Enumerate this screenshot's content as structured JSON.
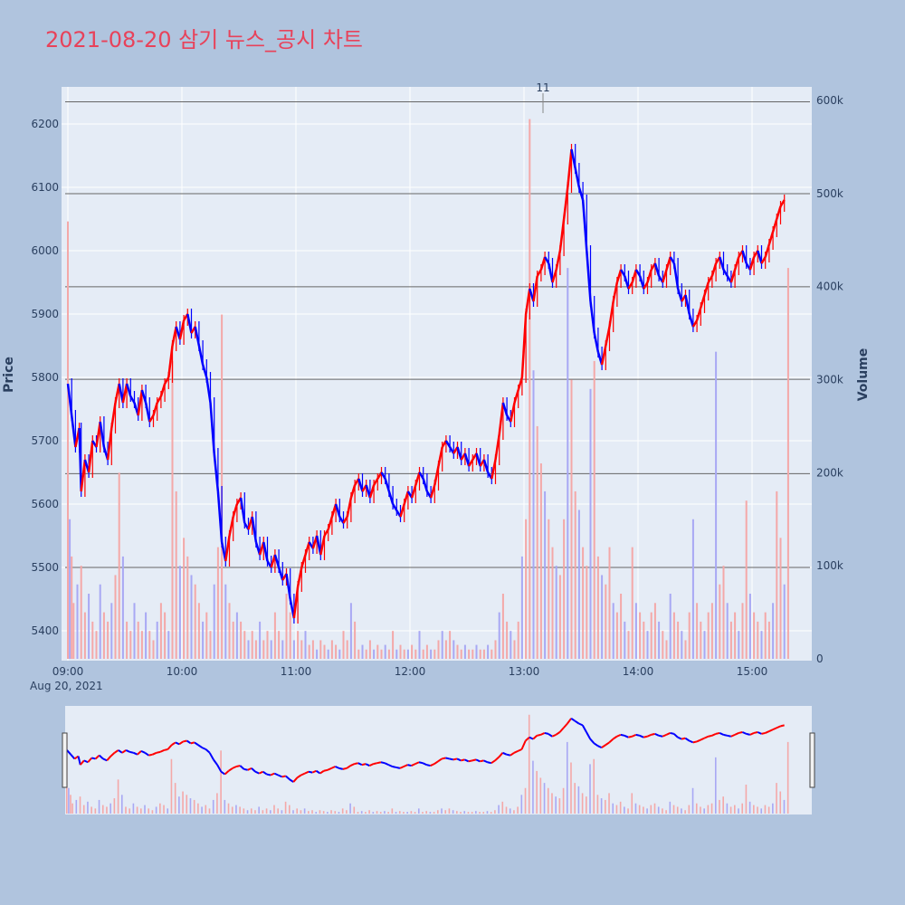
{
  "title": "2021-08-20 삼기 뉴스_공시 차트",
  "colors": {
    "up": "#ff0000",
    "down": "#0000ff",
    "up_volume": "#f4a8a8",
    "down_volume": "#a8a8f4",
    "plot_bg": "#e5ecf6",
    "page_bg": "#b0c4de",
    "title": "#e8425a",
    "hline": "#666666"
  },
  "chart_data": {
    "type": "candlestick",
    "title": "2021-08-20 삼기 뉴스_공시 차트",
    "ylabel": "Price",
    "y2label": "Volume",
    "ylim": [
      5355,
      6250
    ],
    "y2lim": [
      0,
      610000
    ],
    "price_ticks": [
      "5400",
      "5500",
      "5600",
      "5700",
      "5800",
      "5900",
      "6000",
      "6100",
      "6200"
    ],
    "volume_ticks": [
      "0",
      "100k",
      "200k",
      "300k",
      "400k",
      "500k",
      "600k"
    ],
    "time_ticks": [
      "09:00",
      "10:00",
      "11:00",
      "12:00",
      "13:00",
      "14:00",
      "15:00"
    ],
    "date_label": "Aug 20, 2021",
    "annotation": {
      "text": "11",
      "time": "13:10"
    },
    "horizontal_lines": [
      6235,
      6090,
      5943,
      5797,
      5648,
      5500
    ],
    "price_path": [
      [
        "09:00",
        5790
      ],
      [
        "09:02",
        5740
      ],
      [
        "09:04",
        5690
      ],
      [
        "09:06",
        5720
      ],
      [
        "09:07",
        5620
      ],
      [
        "09:09",
        5670
      ],
      [
        "09:11",
        5650
      ],
      [
        "09:13",
        5700
      ],
      [
        "09:15",
        5690
      ],
      [
        "09:17",
        5730
      ],
      [
        "09:19",
        5690
      ],
      [
        "09:21",
        5670
      ],
      [
        "09:23",
        5720
      ],
      [
        "09:25",
        5760
      ],
      [
        "09:27",
        5790
      ],
      [
        "09:29",
        5760
      ],
      [
        "09:31",
        5790
      ],
      [
        "09:33",
        5770
      ],
      [
        "09:35",
        5760
      ],
      [
        "09:37",
        5740
      ],
      [
        "09:39",
        5780
      ],
      [
        "09:41",
        5760
      ],
      [
        "09:43",
        5730
      ],
      [
        "09:45",
        5740
      ],
      [
        "09:47",
        5760
      ],
      [
        "09:49",
        5770
      ],
      [
        "09:51",
        5790
      ],
      [
        "09:53",
        5800
      ],
      [
        "09:55",
        5850
      ],
      [
        "09:57",
        5880
      ],
      [
        "09:59",
        5860
      ],
      [
        "10:01",
        5890
      ],
      [
        "10:03",
        5900
      ],
      [
        "10:05",
        5870
      ],
      [
        "10:07",
        5880
      ],
      [
        "10:09",
        5850
      ],
      [
        "10:11",
        5820
      ],
      [
        "10:13",
        5800
      ],
      [
        "10:15",
        5760
      ],
      [
        "10:17",
        5680
      ],
      [
        "10:19",
        5620
      ],
      [
        "10:21",
        5540
      ],
      [
        "10:23",
        5510
      ],
      [
        "10:25",
        5550
      ],
      [
        "10:27",
        5580
      ],
      [
        "10:29",
        5600
      ],
      [
        "10:31",
        5610
      ],
      [
        "10:33",
        5570
      ],
      [
        "10:35",
        5560
      ],
      [
        "10:37",
        5580
      ],
      [
        "10:39",
        5540
      ],
      [
        "10:41",
        5520
      ],
      [
        "10:43",
        5540
      ],
      [
        "10:45",
        5510
      ],
      [
        "10:47",
        5500
      ],
      [
        "10:49",
        5520
      ],
      [
        "10:51",
        5500
      ],
      [
        "10:53",
        5480
      ],
      [
        "10:55",
        5490
      ],
      [
        "10:57",
        5450
      ],
      [
        "10:59",
        5420
      ],
      [
        "11:01",
        5470
      ],
      [
        "11:03",
        5500
      ],
      [
        "11:05",
        5520
      ],
      [
        "11:07",
        5540
      ],
      [
        "11:09",
        5530
      ],
      [
        "11:11",
        5550
      ],
      [
        "11:13",
        5520
      ],
      [
        "11:15",
        5550
      ],
      [
        "11:17",
        5560
      ],
      [
        "11:19",
        5580
      ],
      [
        "11:21",
        5600
      ],
      [
        "11:23",
        5580
      ],
      [
        "11:25",
        5570
      ],
      [
        "11:27",
        5580
      ],
      [
        "11:29",
        5610
      ],
      [
        "11:31",
        5630
      ],
      [
        "11:33",
        5640
      ],
      [
        "11:35",
        5620
      ],
      [
        "11:37",
        5630
      ],
      [
        "11:39",
        5610
      ],
      [
        "11:41",
        5630
      ],
      [
        "11:43",
        5640
      ],
      [
        "11:45",
        5650
      ],
      [
        "11:47",
        5640
      ],
      [
        "11:49",
        5620
      ],
      [
        "11:51",
        5600
      ],
      [
        "11:53",
        5590
      ],
      [
        "11:55",
        5580
      ],
      [
        "11:57",
        5600
      ],
      [
        "11:59",
        5620
      ],
      [
        "12:01",
        5610
      ],
      [
        "12:03",
        5630
      ],
      [
        "12:05",
        5650
      ],
      [
        "12:07",
        5640
      ],
      [
        "12:09",
        5620
      ],
      [
        "12:11",
        5610
      ],
      [
        "12:13",
        5630
      ],
      [
        "12:15",
        5660
      ],
      [
        "12:17",
        5690
      ],
      [
        "12:19",
        5700
      ],
      [
        "12:21",
        5690
      ],
      [
        "12:23",
        5680
      ],
      [
        "12:25",
        5690
      ],
      [
        "12:27",
        5670
      ],
      [
        "12:29",
        5680
      ],
      [
        "12:31",
        5660
      ],
      [
        "12:33",
        5670
      ],
      [
        "12:35",
        5680
      ],
      [
        "12:37",
        5660
      ],
      [
        "12:39",
        5670
      ],
      [
        "12:41",
        5650
      ],
      [
        "12:43",
        5640
      ],
      [
        "12:45",
        5670
      ],
      [
        "12:47",
        5710
      ],
      [
        "12:49",
        5760
      ],
      [
        "12:51",
        5740
      ],
      [
        "12:53",
        5730
      ],
      [
        "12:55",
        5760
      ],
      [
        "12:57",
        5780
      ],
      [
        "12:59",
        5800
      ],
      [
        "13:01",
        5900
      ],
      [
        "13:03",
        5940
      ],
      [
        "13:05",
        5920
      ],
      [
        "13:07",
        5960
      ],
      [
        "13:09",
        5970
      ],
      [
        "13:11",
        5990
      ],
      [
        "13:13",
        5980
      ],
      [
        "13:15",
        5950
      ],
      [
        "13:17",
        5970
      ],
      [
        "13:19",
        6000
      ],
      [
        "13:21",
        6050
      ],
      [
        "13:23",
        6100
      ],
      [
        "13:25",
        6160
      ],
      [
        "13:27",
        6130
      ],
      [
        "13:29",
        6100
      ],
      [
        "13:31",
        6080
      ],
      [
        "13:33",
        6000
      ],
      [
        "13:35",
        5920
      ],
      [
        "13:37",
        5870
      ],
      [
        "13:39",
        5840
      ],
      [
        "13:41",
        5820
      ],
      [
        "13:43",
        5850
      ],
      [
        "13:45",
        5880
      ],
      [
        "13:47",
        5920
      ],
      [
        "13:49",
        5950
      ],
      [
        "13:51",
        5970
      ],
      [
        "13:53",
        5960
      ],
      [
        "13:55",
        5940
      ],
      [
        "13:57",
        5950
      ],
      [
        "13:59",
        5970
      ],
      [
        "14:01",
        5960
      ],
      [
        "14:03",
        5940
      ],
      [
        "14:05",
        5950
      ],
      [
        "14:07",
        5970
      ],
      [
        "14:09",
        5980
      ],
      [
        "14:11",
        5960
      ],
      [
        "14:13",
        5950
      ],
      [
        "14:15",
        5970
      ],
      [
        "14:17",
        5990
      ],
      [
        "14:19",
        5980
      ],
      [
        "14:21",
        5940
      ],
      [
        "14:23",
        5920
      ],
      [
        "14:25",
        5930
      ],
      [
        "14:27",
        5900
      ],
      [
        "14:29",
        5880
      ],
      [
        "14:31",
        5890
      ],
      [
        "14:33",
        5910
      ],
      [
        "14:35",
        5930
      ],
      [
        "14:37",
        5950
      ],
      [
        "14:39",
        5960
      ],
      [
        "14:41",
        5980
      ],
      [
        "14:43",
        5990
      ],
      [
        "14:45",
        5970
      ],
      [
        "14:47",
        5960
      ],
      [
        "14:49",
        5950
      ],
      [
        "14:51",
        5970
      ],
      [
        "14:53",
        5990
      ],
      [
        "14:55",
        6000
      ],
      [
        "14:57",
        5980
      ],
      [
        "14:59",
        5970
      ],
      [
        "15:01",
        5990
      ],
      [
        "15:03",
        6000
      ],
      [
        "15:05",
        5980
      ],
      [
        "15:07",
        5990
      ],
      [
        "15:09",
        6010
      ],
      [
        "15:11",
        6030
      ],
      [
        "15:13",
        6050
      ],
      [
        "15:15",
        6070
      ],
      [
        "15:17",
        6080
      ]
    ],
    "volume": [
      [
        "09:00",
        470000
      ],
      [
        "09:01",
        150000
      ],
      [
        "09:02",
        110000
      ],
      [
        "09:03",
        60000
      ],
      [
        "09:05",
        80000
      ],
      [
        "09:07",
        100000
      ],
      [
        "09:09",
        50000
      ],
      [
        "09:11",
        70000
      ],
      [
        "09:13",
        40000
      ],
      [
        "09:15",
        30000
      ],
      [
        "09:17",
        80000
      ],
      [
        "09:19",
        50000
      ],
      [
        "09:21",
        40000
      ],
      [
        "09:23",
        60000
      ],
      [
        "09:25",
        90000
      ],
      [
        "09:27",
        200000
      ],
      [
        "09:29",
        110000
      ],
      [
        "09:31",
        40000
      ],
      [
        "09:33",
        30000
      ],
      [
        "09:35",
        60000
      ],
      [
        "09:37",
        40000
      ],
      [
        "09:39",
        30000
      ],
      [
        "09:41",
        50000
      ],
      [
        "09:43",
        30000
      ],
      [
        "09:45",
        20000
      ],
      [
        "09:47",
        40000
      ],
      [
        "09:49",
        60000
      ],
      [
        "09:51",
        50000
      ],
      [
        "09:53",
        30000
      ],
      [
        "09:55",
        320000
      ],
      [
        "09:57",
        180000
      ],
      [
        "09:59",
        100000
      ],
      [
        "10:01",
        130000
      ],
      [
        "10:03",
        110000
      ],
      [
        "10:05",
        90000
      ],
      [
        "10:07",
        80000
      ],
      [
        "10:09",
        60000
      ],
      [
        "10:11",
        40000
      ],
      [
        "10:13",
        50000
      ],
      [
        "10:15",
        30000
      ],
      [
        "10:17",
        80000
      ],
      [
        "10:19",
        120000
      ],
      [
        "10:21",
        370000
      ],
      [
        "10:23",
        80000
      ],
      [
        "10:25",
        60000
      ],
      [
        "10:27",
        40000
      ],
      [
        "10:29",
        50000
      ],
      [
        "10:31",
        40000
      ],
      [
        "10:33",
        30000
      ],
      [
        "10:35",
        20000
      ],
      [
        "10:37",
        30000
      ],
      [
        "10:39",
        20000
      ],
      [
        "10:41",
        40000
      ],
      [
        "10:43",
        20000
      ],
      [
        "10:45",
        30000
      ],
      [
        "10:47",
        20000
      ],
      [
        "10:49",
        50000
      ],
      [
        "10:51",
        30000
      ],
      [
        "10:53",
        20000
      ],
      [
        "10:55",
        70000
      ],
      [
        "10:57",
        50000
      ],
      [
        "10:59",
        20000
      ],
      [
        "11:01",
        30000
      ],
      [
        "11:03",
        20000
      ],
      [
        "11:05",
        30000
      ],
      [
        "11:07",
        15000
      ],
      [
        "11:09",
        20000
      ],
      [
        "11:11",
        10000
      ],
      [
        "11:13",
        20000
      ],
      [
        "11:15",
        15000
      ],
      [
        "11:17",
        10000
      ],
      [
        "11:19",
        20000
      ],
      [
        "11:21",
        15000
      ],
      [
        "11:23",
        10000
      ],
      [
        "11:25",
        30000
      ],
      [
        "11:27",
        20000
      ],
      [
        "11:29",
        60000
      ],
      [
        "11:31",
        40000
      ],
      [
        "11:33",
        10000
      ],
      [
        "11:35",
        15000
      ],
      [
        "11:37",
        10000
      ],
      [
        "11:39",
        20000
      ],
      [
        "11:41",
        10000
      ],
      [
        "11:43",
        15000
      ],
      [
        "11:45",
        10000
      ],
      [
        "11:47",
        15000
      ],
      [
        "11:49",
        10000
      ],
      [
        "11:51",
        30000
      ],
      [
        "11:53",
        10000
      ],
      [
        "11:55",
        15000
      ],
      [
        "11:57",
        10000
      ],
      [
        "11:59",
        10000
      ],
      [
        "12:01",
        15000
      ],
      [
        "12:03",
        10000
      ],
      [
        "12:05",
        30000
      ],
      [
        "12:07",
        10000
      ],
      [
        "12:09",
        15000
      ],
      [
        "12:11",
        10000
      ],
      [
        "12:13",
        10000
      ],
      [
        "12:15",
        20000
      ],
      [
        "12:17",
        30000
      ],
      [
        "12:19",
        20000
      ],
      [
        "12:21",
        30000
      ],
      [
        "12:23",
        20000
      ],
      [
        "12:25",
        15000
      ],
      [
        "12:27",
        10000
      ],
      [
        "12:29",
        15000
      ],
      [
        "12:31",
        10000
      ],
      [
        "12:33",
        10000
      ],
      [
        "12:35",
        15000
      ],
      [
        "12:37",
        10000
      ],
      [
        "12:39",
        10000
      ],
      [
        "12:41",
        15000
      ],
      [
        "12:43",
        10000
      ],
      [
        "12:45",
        20000
      ],
      [
        "12:47",
        50000
      ],
      [
        "12:49",
        70000
      ],
      [
        "12:51",
        40000
      ],
      [
        "12:53",
        30000
      ],
      [
        "12:55",
        20000
      ],
      [
        "12:57",
        40000
      ],
      [
        "12:59",
        110000
      ],
      [
        "13:01",
        150000
      ],
      [
        "13:03",
        580000
      ],
      [
        "13:05",
        310000
      ],
      [
        "13:07",
        250000
      ],
      [
        "13:09",
        210000
      ],
      [
        "13:11",
        180000
      ],
      [
        "13:13",
        150000
      ],
      [
        "13:15",
        120000
      ],
      [
        "13:17",
        100000
      ],
      [
        "13:19",
        90000
      ],
      [
        "13:21",
        150000
      ],
      [
        "13:23",
        420000
      ],
      [
        "13:25",
        300000
      ],
      [
        "13:27",
        180000
      ],
      [
        "13:29",
        160000
      ],
      [
        "13:31",
        120000
      ],
      [
        "13:33",
        100000
      ],
      [
        "13:35",
        290000
      ],
      [
        "13:37",
        320000
      ],
      [
        "13:39",
        110000
      ],
      [
        "13:41",
        90000
      ],
      [
        "13:43",
        80000
      ],
      [
        "13:45",
        120000
      ],
      [
        "13:47",
        60000
      ],
      [
        "13:49",
        50000
      ],
      [
        "13:51",
        70000
      ],
      [
        "13:53",
        40000
      ],
      [
        "13:55",
        30000
      ],
      [
        "13:57",
        120000
      ],
      [
        "13:59",
        60000
      ],
      [
        "14:01",
        50000
      ],
      [
        "14:03",
        40000
      ],
      [
        "14:05",
        30000
      ],
      [
        "14:07",
        50000
      ],
      [
        "14:09",
        60000
      ],
      [
        "14:11",
        40000
      ],
      [
        "14:13",
        30000
      ],
      [
        "14:15",
        20000
      ],
      [
        "14:17",
        70000
      ],
      [
        "14:19",
        50000
      ],
      [
        "14:21",
        40000
      ],
      [
        "14:23",
        30000
      ],
      [
        "14:25",
        20000
      ],
      [
        "14:27",
        50000
      ],
      [
        "14:29",
        150000
      ],
      [
        "14:31",
        60000
      ],
      [
        "14:33",
        40000
      ],
      [
        "14:35",
        30000
      ],
      [
        "14:37",
        50000
      ],
      [
        "14:39",
        60000
      ],
      [
        "14:41",
        330000
      ],
      [
        "14:43",
        80000
      ],
      [
        "14:45",
        100000
      ],
      [
        "14:47",
        60000
      ],
      [
        "14:49",
        40000
      ],
      [
        "14:51",
        50000
      ],
      [
        "14:53",
        30000
      ],
      [
        "14:55",
        60000
      ],
      [
        "14:57",
        170000
      ],
      [
        "14:59",
        70000
      ],
      [
        "15:01",
        50000
      ],
      [
        "15:03",
        40000
      ],
      [
        "15:05",
        30000
      ],
      [
        "15:07",
        50000
      ],
      [
        "15:09",
        40000
      ],
      [
        "15:11",
        60000
      ],
      [
        "15:13",
        180000
      ],
      [
        "15:15",
        130000
      ],
      [
        "15:17",
        80000
      ],
      [
        "15:19",
        420000
      ]
    ]
  }
}
